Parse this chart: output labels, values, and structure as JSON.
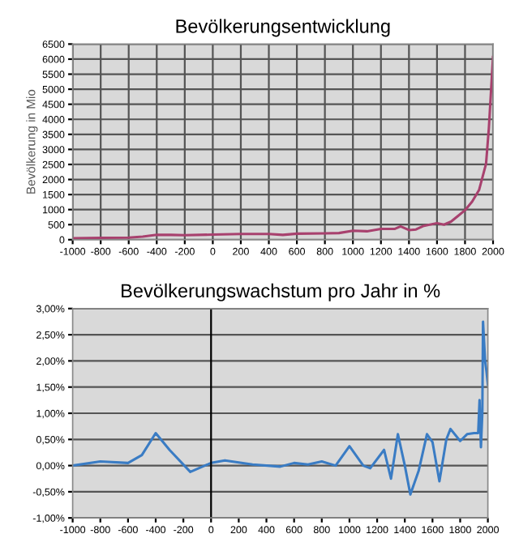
{
  "chart_data": [
    {
      "type": "line",
      "title": "Bevölkerungsentwicklung",
      "ylabel": "Bevölkerung in Mio",
      "grid": true,
      "legend": false,
      "x": [
        -1000,
        -800,
        -600,
        -500,
        -400,
        -300,
        -200,
        0,
        200,
        400,
        500,
        600,
        800,
        900,
        1000,
        1100,
        1200,
        1300,
        1340,
        1400,
        1450,
        1500,
        1600,
        1650,
        1700,
        1750,
        1800,
        1850,
        1900,
        1950,
        1970,
        1990,
        2000
      ],
      "series": [
        {
          "color": "#a8416e",
          "values": [
            50,
            60,
            70,
            100,
            160,
            160,
            150,
            170,
            190,
            190,
            160,
            200,
            210,
            220,
            300,
            280,
            360,
            360,
            440,
            320,
            340,
            450,
            550,
            500,
            600,
            790,
            980,
            1260,
            1650,
            2520,
            3700,
            5300,
            6070
          ]
        }
      ],
      "xlim": [
        -1000,
        2000
      ],
      "xticks": [
        -1000,
        -800,
        -600,
        -400,
        -200,
        0,
        200,
        400,
        600,
        800,
        1000,
        1200,
        1400,
        1600,
        1800,
        2000
      ],
      "ylim": [
        0,
        6500
      ],
      "yticks": [
        0,
        500,
        1000,
        1500,
        2000,
        2500,
        3000,
        3500,
        4000,
        4500,
        5000,
        5500,
        6000,
        6500
      ]
    },
    {
      "type": "line",
      "title": "Bevölkerungswachstum pro Jahr in %",
      "grid": "y",
      "legend": false,
      "x": [
        -1000,
        -800,
        -600,
        -500,
        -400,
        -300,
        -150,
        0,
        100,
        300,
        500,
        600,
        700,
        800,
        900,
        1000,
        1100,
        1150,
        1250,
        1300,
        1350,
        1400,
        1440,
        1500,
        1560,
        1600,
        1650,
        1700,
        1730,
        1800,
        1850,
        1900,
        1930,
        1940,
        1950,
        1960,
        1965,
        1970,
        1980,
        1990,
        2000
      ],
      "series": [
        {
          "color": "#3a7cc4",
          "values": [
            0,
            0.08,
            0.05,
            0.2,
            0.62,
            0.3,
            -0.12,
            0.05,
            0.1,
            0.02,
            -0.02,
            0.05,
            0.02,
            0.08,
            0,
            0.37,
            0,
            -0.05,
            0.3,
            -0.25,
            0.6,
            0,
            -0.55,
            -0.1,
            0.6,
            0.45,
            -0.3,
            0.5,
            0.7,
            0.47,
            0.6,
            0.62,
            0.62,
            1.25,
            0.35,
            1.0,
            2.75,
            2.5,
            2.0,
            1.8,
            1.55
          ]
        }
      ],
      "ref_lines": [
        {
          "axis": "x",
          "value": 0,
          "color": "#000000"
        }
      ],
      "xlim": [
        -1000,
        2000
      ],
      "xticks": [
        -1000,
        -800,
        -600,
        -400,
        -200,
        0,
        200,
        400,
        600,
        800,
        1000,
        1200,
        1400,
        1600,
        1800,
        2000
      ],
      "ylim": [
        -1,
        3
      ],
      "yticks": [
        {
          "value": -1,
          "label": "-1,00%"
        },
        {
          "value": -0.5,
          "label": "-0,50%"
        },
        {
          "value": 0,
          "label": "0,00%"
        },
        {
          "value": 0.5,
          "label": "0,50%"
        },
        {
          "value": 1,
          "label": "1,00%"
        },
        {
          "value": 1.5,
          "label": "1,50%"
        },
        {
          "value": 2,
          "label": "2,00%"
        },
        {
          "value": 2.5,
          "label": "2,50%"
        },
        {
          "value": 3,
          "label": "3,00%"
        }
      ]
    }
  ]
}
